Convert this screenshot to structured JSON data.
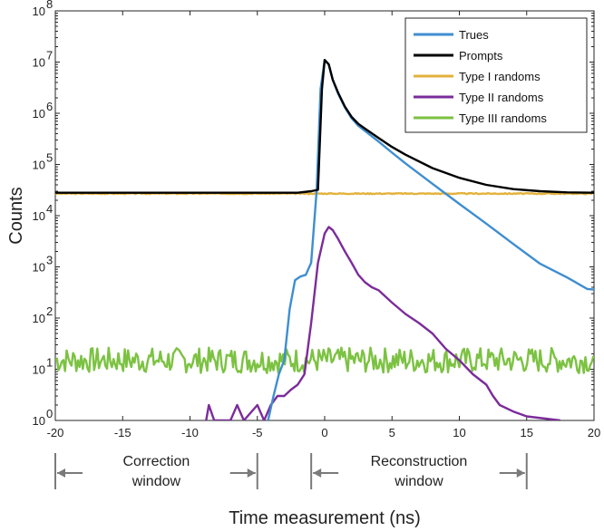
{
  "chart_data": {
    "type": "line",
    "title": "",
    "xlabel": "Time measurement (ns)",
    "ylabel": "Counts",
    "xlim": [
      -20,
      20
    ],
    "ylim_log10": [
      0,
      8
    ],
    "yscale": "log",
    "x_ticks": [
      -20,
      -15,
      -10,
      -5,
      0,
      5,
      10,
      15,
      20
    ],
    "x_tick_labels": [
      "-20",
      "-15",
      "-10",
      "-5",
      "0",
      "5",
      "10",
      "15",
      "20"
    ],
    "y_ticks_exponent": [
      0,
      1,
      2,
      3,
      4,
      5,
      6,
      7,
      8
    ],
    "y_tick_labels": [
      "10",
      "10",
      "10",
      "10",
      "10",
      "10",
      "10",
      "10",
      "10"
    ],
    "y_tick_exponents": [
      "0",
      "1",
      "2",
      "3",
      "4",
      "5",
      "6",
      "7",
      "8"
    ],
    "legend_position": "top-right",
    "series": [
      {
        "name": "Trues",
        "color": "#3e8ed0",
        "x": [
          -4.2,
          -3.8,
          -3.4,
          -3.0,
          -2.6,
          -2.2,
          -1.8,
          -1.4,
          -1.0,
          -0.6,
          -0.3,
          0.0,
          0.3,
          0.6,
          1.0,
          1.5,
          2.0,
          2.5,
          3.0,
          4.0,
          5.0,
          6.0,
          8.0,
          10.0,
          12.0,
          14.0,
          16.0,
          18.0,
          19.5,
          20.0
        ],
        "y": [
          1,
          3,
          8,
          15,
          150,
          550,
          650,
          700,
          1200,
          30000,
          3000000,
          11000000,
          9000000,
          4500000,
          2400000,
          1300000,
          800000,
          570000,
          450000,
          280000,
          170000,
          105000,
          42000,
          17000,
          7000,
          2800,
          1150,
          620,
          370,
          360
        ]
      },
      {
        "name": "Prompts",
        "color": "#000000",
        "x": [
          -20,
          -10,
          -2,
          -1,
          -0.5,
          -0.2,
          0.0,
          0.3,
          0.6,
          1.0,
          1.5,
          2.0,
          2.5,
          3.0,
          4.0,
          5.0,
          6.0,
          8.0,
          10.0,
          12.0,
          14.0,
          16.0,
          18.0,
          20.0
        ],
        "y": [
          28000,
          28000,
          28000,
          30000,
          32000,
          3000000,
          11000000,
          9000000,
          4500000,
          2500000,
          1350000,
          850000,
          620000,
          500000,
          330000,
          220000,
          155000,
          85000,
          55000,
          40000,
          33000,
          30000,
          28500,
          28000
        ]
      },
      {
        "name": "Type I randoms",
        "color": "#e3b23c",
        "x": [
          -20,
          -10,
          0,
          10,
          20
        ],
        "y": [
          27000,
          27000,
          27000,
          27000,
          27000
        ]
      },
      {
        "name": "Type II randoms",
        "color": "#7b2c9a",
        "x": [
          -8.8,
          -8.6,
          -8.2,
          -7.0,
          -6.5,
          -6.0,
          -5.0,
          -4.5,
          -4.0,
          -3.5,
          -3.0,
          -2.5,
          -2.0,
          -1.5,
          -1.0,
          -0.5,
          0.0,
          0.3,
          0.6,
          1.0,
          1.5,
          2.0,
          2.5,
          3.0,
          3.5,
          4.0,
          5.0,
          6.0,
          7.0,
          8.0,
          9.0,
          10.0,
          11.0,
          12.0,
          12.5,
          13.0,
          14.0,
          15.0,
          17.5
        ],
        "y": [
          1,
          2,
          1,
          1,
          2,
          1,
          2,
          1,
          2,
          3,
          3,
          4,
          5,
          8,
          80,
          1200,
          4500,
          6000,
          5200,
          3500,
          2000,
          1200,
          700,
          500,
          400,
          350,
          200,
          120,
          80,
          50,
          25,
          15,
          8,
          5,
          3,
          2,
          1.5,
          1.2,
          1
        ]
      },
      {
        "name": "Type III randoms",
        "color": "#7cc242",
        "x": [
          -20,
          20
        ],
        "y": [
          15,
          15
        ]
      }
    ],
    "annotations": [
      {
        "text": "Correction\nwindow",
        "line1": "Correction",
        "line2": "window",
        "x_range": [
          -20,
          -5
        ]
      },
      {
        "text": "Reconstruction\nwindow",
        "line1": "Reconstruction",
        "line2": "window",
        "x_range": [
          -1,
          15
        ]
      }
    ]
  }
}
